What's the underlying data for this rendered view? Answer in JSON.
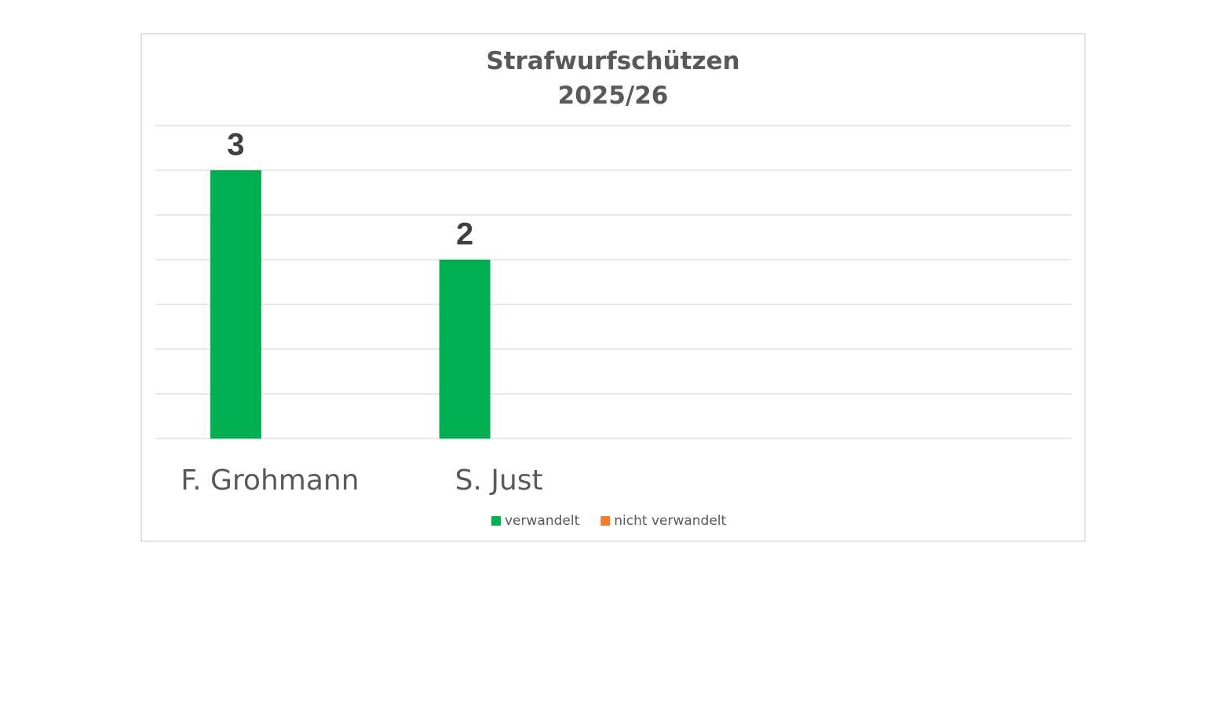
{
  "chart_data": {
    "type": "bar",
    "title": "Strafwurfschützen\n2025/26",
    "categories": [
      "F. Grohmann",
      "S. Just",
      null,
      null
    ],
    "series": [
      {
        "name": "verwandelt",
        "color": "#00b050",
        "values": [
          3,
          2,
          null,
          null
        ]
      },
      {
        "name": "nicht verwandelt",
        "color": "#ed7d31",
        "values": [
          null,
          null,
          null,
          null
        ]
      }
    ],
    "ylim": [
      0,
      3.5
    ],
    "yticks": [
      0,
      0.5,
      1,
      1.5,
      2,
      2.5,
      3,
      3.5
    ],
    "grid": true,
    "legend": "bottom",
    "data_labels": true
  }
}
